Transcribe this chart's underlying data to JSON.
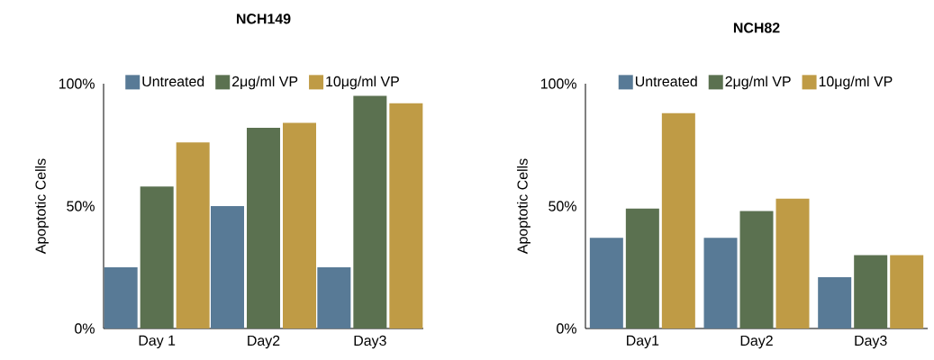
{
  "chart_data": [
    {
      "type": "bar",
      "title": "NCH149",
      "ylabel": "Apoptotic Cells",
      "categories": [
        "Day 1",
        "Day2",
        "Day3"
      ],
      "series": [
        {
          "name": "Untreated",
          "color": "#587a96",
          "values": [
            25,
            50,
            25
          ]
        },
        {
          "name": "2μg/ml VP",
          "color": "#5b7150",
          "values": [
            58,
            82,
            95
          ]
        },
        {
          "name": "10μg/ml VP",
          "color": "#bf9b45",
          "values": [
            76,
            84,
            92
          ]
        }
      ],
      "ylim": [
        0,
        100
      ],
      "yticks": [
        {
          "value": 0,
          "label": "0%"
        },
        {
          "value": 50,
          "label": "50%"
        },
        {
          "value": 100,
          "label": "100%"
        }
      ],
      "legend": "top"
    },
    {
      "type": "bar",
      "title": "NCH82",
      "ylabel": "Apoptotic Cells",
      "categories": [
        "Day1",
        "Day2",
        "Day3"
      ],
      "series": [
        {
          "name": "Untreated",
          "color": "#587a96",
          "values": [
            37,
            37,
            21
          ]
        },
        {
          "name": "2μg/ml VP",
          "color": "#5b7150",
          "values": [
            49,
            48,
            30
          ]
        },
        {
          "name": "10μg/ml VP",
          "color": "#bf9b45",
          "values": [
            88,
            53,
            30
          ]
        }
      ],
      "ylim": [
        0,
        100
      ],
      "yticks": [
        {
          "value": 0,
          "label": "0%"
        },
        {
          "value": 50,
          "label": "50%"
        },
        {
          "value": 100,
          "label": "100%"
        }
      ],
      "legend": "top"
    }
  ]
}
